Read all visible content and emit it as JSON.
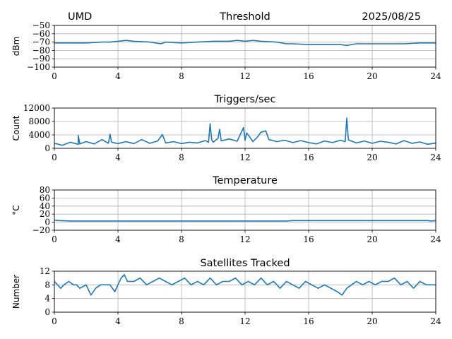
{
  "header": {
    "left": "UMD",
    "right": "2025/08/25"
  },
  "series_color": "#1f77b4",
  "chart_data": [
    {
      "type": "line",
      "title": "Threshold",
      "ylabel": "dBm",
      "xlim": [
        0,
        24
      ],
      "ylim": [
        -100,
        -50
      ],
      "xticks": [
        0,
        4,
        8,
        12,
        16,
        20,
        24
      ],
      "yticks": [
        -100,
        -90,
        -80,
        -70,
        -60,
        -50
      ],
      "ytick_labels": [
        "−100",
        "−90",
        "−80",
        "−70",
        "−60",
        "−50"
      ],
      "grid": true,
      "series": [
        {
          "x": [
            0,
            1,
            2,
            3,
            3.5,
            4,
            4.5,
            5,
            6,
            6.7,
            7,
            8,
            9,
            10,
            11,
            11.5,
            12,
            12.5,
            13,
            14,
            14.6,
            15,
            16,
            17,
            18,
            18.4,
            19,
            20,
            21,
            22,
            23,
            24
          ],
          "y": [
            -71,
            -71,
            -71,
            -70,
            -70,
            -69,
            -68,
            -69,
            -70,
            -72,
            -70,
            -71,
            -70,
            -69,
            -69,
            -68,
            -69,
            -68,
            -69,
            -70,
            -72,
            -72,
            -73,
            -73,
            -73,
            -74,
            -72,
            -72,
            -72,
            -72,
            -71,
            -71
          ]
        }
      ]
    },
    {
      "type": "line",
      "title": "Triggers/sec",
      "ylabel": "Count",
      "xlim": [
        0,
        24
      ],
      "ylim": [
        0,
        12000
      ],
      "xticks": [
        0,
        4,
        8,
        12,
        16,
        20,
        24
      ],
      "yticks": [
        0,
        4000,
        8000,
        12000
      ],
      "ytick_labels": [
        "0",
        "4000",
        "8000",
        "12000"
      ],
      "grid": true,
      "series": [
        {
          "x": [
            0,
            0.5,
            1,
            1.5,
            1.5,
            1.6,
            2,
            2.5,
            3,
            3.4,
            3.5,
            3.6,
            4,
            4.5,
            5,
            5.5,
            6,
            6.5,
            6.8,
            7,
            7.5,
            8,
            8.5,
            9,
            9.5,
            9.7,
            9.8,
            9.9,
            10,
            10.3,
            10.4,
            10.5,
            11,
            11.5,
            11.9,
            12,
            12.1,
            12.5,
            12.8,
            13,
            13.3,
            13.5,
            14,
            14.5,
            15,
            15.5,
            16,
            16.5,
            17,
            17.5,
            18,
            18.3,
            18.4,
            18.5,
            19,
            19.5,
            20,
            20.5,
            21,
            21.5,
            22,
            22.5,
            23,
            23.5,
            24
          ],
          "y": [
            1500,
            900,
            1800,
            1200,
            3800,
            1300,
            2000,
            1300,
            2600,
            1500,
            4200,
            1800,
            1400,
            2000,
            1400,
            2600,
            1500,
            2200,
            4100,
            1600,
            2000,
            1400,
            1800,
            1600,
            2300,
            1800,
            7300,
            2500,
            1800,
            3000,
            5700,
            2200,
            2800,
            2100,
            6200,
            2400,
            4600,
            2000,
            3500,
            4800,
            5200,
            2600,
            2000,
            2400,
            1700,
            2300,
            1700,
            1300,
            2200,
            1700,
            2400,
            2000,
            9000,
            2500,
            1600,
            2200,
            1500,
            2100,
            1800,
            1300,
            2300,
            1500,
            1900,
            1200,
            1600
          ]
        }
      ]
    },
    {
      "type": "line",
      "title": "Temperature",
      "ylabel": "°C",
      "xlim": [
        0,
        24
      ],
      "ylim": [
        -20,
        80
      ],
      "xticks": [
        0,
        4,
        8,
        12,
        16,
        20,
        24
      ],
      "yticks": [
        -20,
        0,
        20,
        40,
        60,
        80
      ],
      "ytick_labels": [
        "−20",
        "0",
        "20",
        "40",
        "60",
        "80"
      ],
      "grid": true,
      "series": [
        {
          "x": [
            0,
            0.3,
            1,
            4,
            8,
            12,
            14.6,
            15,
            20,
            23.5,
            23.7,
            24
          ],
          "y": [
            5,
            4,
            3,
            3,
            3,
            3,
            3,
            4,
            4,
            4,
            3,
            4
          ]
        }
      ]
    },
    {
      "type": "line",
      "title": "Satellites Tracked",
      "ylabel": "Number",
      "xlim": [
        0,
        24
      ],
      "ylim": [
        0,
        12
      ],
      "xticks": [
        0,
        4,
        8,
        12,
        16,
        20,
        24
      ],
      "yticks": [
        0,
        4,
        8,
        12
      ],
      "ytick_labels": [
        "0",
        "4",
        "8",
        "12"
      ],
      "grid": true,
      "series": [
        {
          "x": [
            0,
            0.2,
            0.4,
            0.6,
            0.9,
            1.2,
            1.4,
            1.6,
            2,
            2.3,
            2.6,
            2.9,
            3.2,
            3.5,
            3.8,
            4.0,
            4.2,
            4.4,
            4.6,
            5,
            5.4,
            5.8,
            6.2,
            6.6,
            7,
            7.4,
            7.8,
            8.2,
            8.6,
            9,
            9.4,
            9.8,
            10.2,
            10.6,
            11,
            11.4,
            11.8,
            12.2,
            12.6,
            13,
            13.4,
            13.8,
            14.2,
            14.6,
            15,
            15.4,
            15.8,
            16.2,
            16.6,
            17,
            17.4,
            17.8,
            18.1,
            18.4,
            18.7,
            19,
            19.4,
            19.8,
            20.2,
            20.6,
            21,
            21.4,
            21.8,
            22.2,
            22.6,
            23,
            23.4,
            23.8,
            24
          ],
          "y": [
            9,
            8,
            7,
            8,
            9,
            8,
            8,
            7,
            8,
            5,
            7,
            8,
            8,
            8,
            6,
            8,
            10,
            11,
            9,
            9,
            10,
            8,
            9,
            10,
            9,
            8,
            9,
            10,
            8,
            9,
            8,
            10,
            8,
            9,
            9,
            10,
            8,
            9,
            8,
            10,
            8,
            9,
            7,
            9,
            8,
            7,
            9,
            8,
            7,
            8,
            7,
            6,
            5,
            7,
            8,
            9,
            8,
            9,
            8,
            9,
            9,
            10,
            8,
            9,
            7,
            9,
            8,
            8,
            8
          ]
        }
      ]
    }
  ]
}
